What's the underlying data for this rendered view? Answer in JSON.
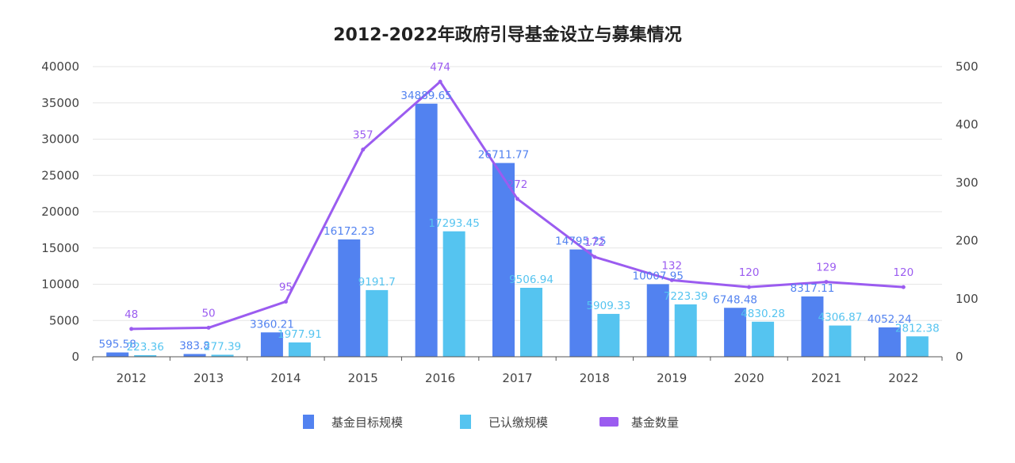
{
  "colors": {
    "target": "#5282F0",
    "paid": "#55C4F0",
    "count": "#9B5CF0",
    "grid": "#E6E6E6",
    "axis": "#555555"
  },
  "chart_data": {
    "type": "bar",
    "title": "2012-2022年政府引导基金设立与募集情况",
    "categories": [
      "2012",
      "2013",
      "2014",
      "2015",
      "2016",
      "2017",
      "2018",
      "2019",
      "2020",
      "2021",
      "2022"
    ],
    "series": [
      {
        "name": "基金目标规模",
        "kind": "bar",
        "axis": "left",
        "values": [
          595.58,
          383.8,
          3360.21,
          16172.23,
          34889.65,
          26711.77,
          14795.25,
          10007.95,
          6748.48,
          8317.11,
          4052.24
        ],
        "labels": [
          "595.58",
          "383.8",
          "3360.21",
          "16172.23",
          "34889.65",
          "26711.77",
          "14795.25",
          "10007.95",
          "6748.48",
          "8317.11",
          "4052.24"
        ]
      },
      {
        "name": "已认缴规模",
        "kind": "bar",
        "axis": "left",
        "values": [
          223.36,
          277.39,
          1977.91,
          9191.7,
          17293.45,
          9506.94,
          5909.33,
          7223.39,
          4830.28,
          4306.87,
          2812.38
        ],
        "labels": [
          "223.36",
          "277.39",
          "1977.91",
          "9191.7",
          "17293.45",
          "9506.94",
          "5909.33",
          "7223.39",
          "4830.28",
          "4306.87",
          "2812.38"
        ]
      },
      {
        "name": "基金数量",
        "kind": "line",
        "axis": "right",
        "values": [
          48,
          50,
          95,
          357,
          474,
          272,
          172,
          132,
          120,
          129,
          120
        ],
        "labels": [
          "48",
          "50",
          "95",
          "357",
          "474",
          "272",
          "172",
          "132",
          "120",
          "129",
          "120"
        ]
      }
    ],
    "yleft": {
      "min": 0,
      "max": 40000,
      "ticks": [
        "0",
        "5000",
        "10000",
        "15000",
        "20000",
        "25000",
        "30000",
        "35000",
        "40000"
      ]
    },
    "yright": {
      "min": 0,
      "max": 500,
      "ticks": [
        "0",
        "100",
        "200",
        "300",
        "400",
        "500"
      ]
    },
    "grid": true,
    "legend": "bottom-center"
  }
}
